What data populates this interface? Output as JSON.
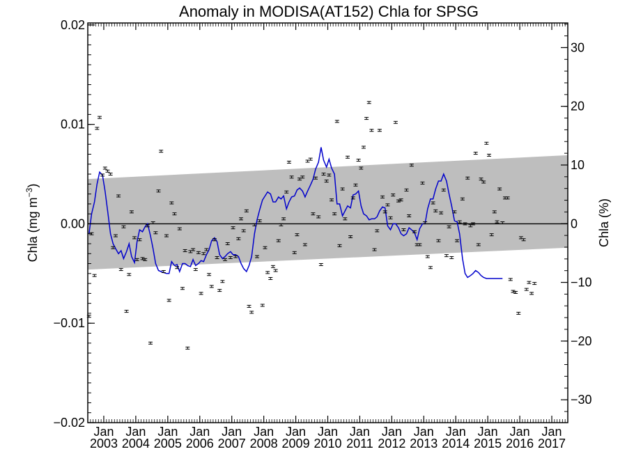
{
  "chart_data": {
    "type": "scatter",
    "title": "Anomaly in MODISA(AT152) Chla for SPSG",
    "ylabel_left": "Chla (mg m",
    "ylabel_left_sup": "−3",
    "ylabel_left_close": ")",
    "ylabel_right": "Chla (%)",
    "xlim": [
      2002.5,
      2017.5
    ],
    "ylim_left": [
      -0.02,
      0.0202
    ],
    "ylim_right": [
      -33.9,
      34.2
    ],
    "left_ticks": [
      {
        "value": -0.02,
        "label": "−0.02"
      },
      {
        "value": -0.01,
        "label": "−0.01"
      },
      {
        "value": 0.0,
        "label": "0.00"
      },
      {
        "value": 0.01,
        "label": "0.01"
      },
      {
        "value": 0.02,
        "label": "0.02"
      }
    ],
    "right_ticks": [
      {
        "value": -30,
        "label": "−30"
      },
      {
        "value": -20,
        "label": "−20"
      },
      {
        "value": -10,
        "label": "−10"
      },
      {
        "value": 0,
        "label": "0"
      },
      {
        "value": 10,
        "label": "10"
      },
      {
        "value": 20,
        "label": "20"
      },
      {
        "value": 30,
        "label": "30"
      }
    ],
    "x_ticks": [
      {
        "value": 2003,
        "month": "Jan",
        "year": "2003"
      },
      {
        "value": 2004,
        "month": "Jan",
        "year": "2004"
      },
      {
        "value": 2005,
        "month": "Jan",
        "year": "2005"
      },
      {
        "value": 2006,
        "month": "Jan",
        "year": "2006"
      },
      {
        "value": 2007,
        "month": "Jan",
        "year": "2007"
      },
      {
        "value": 2008,
        "month": "Jan",
        "year": "2008"
      },
      {
        "value": 2009,
        "month": "Jan",
        "year": "2009"
      },
      {
        "value": 2010,
        "month": "Jan",
        "year": "2010"
      },
      {
        "value": 2011,
        "month": "Jan",
        "year": "2011"
      },
      {
        "value": 2012,
        "month": "Jan",
        "year": "2012"
      },
      {
        "value": 2013,
        "month": "Jan",
        "year": "2013"
      },
      {
        "value": 2014,
        "month": "Jan",
        "year": "2014"
      },
      {
        "value": 2015,
        "month": "Jan",
        "year": "2015"
      },
      {
        "value": 2016,
        "month": "Jan",
        "year": "2016"
      },
      {
        "value": 2017,
        "month": "Jan",
        "year": "2017"
      }
    ],
    "trend_band": {
      "start": 2002.5,
      "end": 2017.5,
      "upper_start": 0.0045,
      "upper_end": 0.0069,
      "lower_start": -0.0046,
      "lower_end": -0.0024
    },
    "zero_line": 0.0,
    "monthly_anomalies": [
      [
        2002.54,
        -0.0093
      ],
      [
        2002.62,
        -0.001
      ],
      [
        2002.71,
        -0.0052
      ],
      [
        2002.79,
        0.0096
      ],
      [
        2002.87,
        0.0107
      ],
      [
        2002.96,
        0.0049
      ],
      [
        2003.04,
        0.0056
      ],
      [
        2003.12,
        0.0053
      ],
      [
        2003.21,
        0.005
      ],
      [
        2003.29,
        -0.0024
      ],
      [
        2003.37,
        -0.0012
      ],
      [
        2003.46,
        0.0028
      ],
      [
        2003.54,
        -0.0046
      ],
      [
        2003.62,
        -0.0003
      ],
      [
        2003.71,
        -0.0088
      ],
      [
        2003.79,
        -0.0051
      ],
      [
        2003.87,
        0.0012
      ],
      [
        2003.96,
        -0.0014
      ],
      [
        2004.04,
        -0.0036
      ],
      [
        2004.12,
        -0.0016
      ],
      [
        2004.21,
        -0.0035
      ],
      [
        2004.29,
        -0.0036
      ],
      [
        2004.37,
        -0.0002
      ],
      [
        2004.46,
        -0.012
      ],
      [
        2004.54,
        0.0001
      ],
      [
        2004.62,
        -0.0009
      ],
      [
        2004.71,
        0.0033
      ],
      [
        2004.79,
        0.0073
      ],
      [
        2004.87,
        -0.0048
      ],
      [
        2004.96,
        -0.0012
      ],
      [
        2005.04,
        -0.0077
      ],
      [
        2005.12,
        0.0021
      ],
      [
        2005.21,
        0.001
      ],
      [
        2005.29,
        -0.0044
      ],
      [
        2005.37,
        -0.0005
      ],
      [
        2005.46,
        -0.0065
      ],
      [
        2005.54,
        -0.0027
      ],
      [
        2005.62,
        -0.0125
      ],
      [
        2005.71,
        -0.0028
      ],
      [
        2005.79,
        -0.0026
      ],
      [
        2005.87,
        -0.0046
      ],
      [
        2005.96,
        -0.0029
      ],
      [
        2006.04,
        -0.007
      ],
      [
        2006.12,
        -0.003
      ],
      [
        2006.21,
        -0.0026
      ],
      [
        2006.29,
        -0.0051
      ],
      [
        2006.37,
        -0.0063
      ],
      [
        2006.46,
        -0.0016
      ],
      [
        2006.54,
        -0.0034
      ],
      [
        2006.62,
        -0.0067
      ],
      [
        2006.71,
        -0.0058
      ],
      [
        2006.79,
        -0.0036
      ],
      [
        2006.87,
        -0.002
      ],
      [
        2006.96,
        -0.0034
      ],
      [
        2007.04,
        -0.0004
      ],
      [
        2007.12,
        -0.0033
      ],
      [
        2007.21,
        -0.0015
      ],
      [
        2007.29,
        0.0005
      ],
      [
        2007.37,
        -0.0007
      ],
      [
        2007.46,
        0.0013
      ],
      [
        2007.54,
        -0.0083
      ],
      [
        2007.62,
        -0.0089
      ],
      [
        2007.71,
        -0.0001
      ],
      [
        2007.79,
        -0.0033
      ],
      [
        2007.87,
        0.0003
      ],
      [
        2007.96,
        -0.0082
      ],
      [
        2008.04,
        -0.0024
      ],
      [
        2008.12,
        -0.0049
      ],
      [
        2008.21,
        -0.0055
      ],
      [
        2008.29,
        -0.0043
      ],
      [
        2008.37,
        -0.0047
      ],
      [
        2008.46,
        -0.0017
      ],
      [
        2008.54,
        -0.0001
      ],
      [
        2008.62,
        0.0005
      ],
      [
        2008.71,
        0.0032
      ],
      [
        2008.79,
        0.0062
      ],
      [
        2008.87,
        0.0047
      ],
      [
        2008.96,
        -0.0029
      ],
      [
        2009.04,
        -0.0011
      ],
      [
        2009.12,
        0.0045
      ],
      [
        2009.21,
        0.0047
      ],
      [
        2009.29,
        -0.0021
      ],
      [
        2009.37,
        0.0063
      ],
      [
        2009.46,
        0.0065
      ],
      [
        2009.54,
        0.001
      ],
      [
        2009.62,
        0.0046
      ],
      [
        2009.71,
        0.0007
      ],
      [
        2009.79,
        -0.0041
      ],
      [
        2009.87,
        0.005
      ],
      [
        2009.96,
        0.0043
      ],
      [
        2010.04,
        0.0049
      ],
      [
        2010.12,
        0.0024
      ],
      [
        2010.21,
        0.001
      ],
      [
        2010.29,
        0.0103
      ],
      [
        2010.37,
        -0.0022
      ],
      [
        2010.46,
        0.0035
      ],
      [
        2010.54,
        0.0005
      ],
      [
        2010.62,
        0.0067
      ],
      [
        2010.71,
        -0.0013
      ],
      [
        2010.79,
        0.0026
      ],
      [
        2010.87,
        0.0039
      ],
      [
        2010.96,
        0.0064
      ],
      [
        2011.04,
        0.0056
      ],
      [
        2011.12,
        0.0077
      ],
      [
        2011.21,
        0.0106
      ],
      [
        2011.29,
        0.0122
      ],
      [
        2011.37,
        0.0094
      ],
      [
        2011.46,
        -0.0026
      ],
      [
        2011.54,
        -0.0007
      ],
      [
        2011.62,
        0.0094
      ],
      [
        2011.71,
        0.0027
      ],
      [
        2011.79,
        0.0012
      ],
      [
        2011.87,
        0.0019
      ],
      [
        2011.96,
        0.0006
      ],
      [
        2012.04,
        0.0029
      ],
      [
        2012.12,
        0.0102
      ],
      [
        2012.21,
        0.0023
      ],
      [
        2012.29,
        0.0024
      ],
      [
        2012.37,
        -0.0006
      ],
      [
        2012.46,
        0.0034
      ],
      [
        2012.54,
        0.0008
      ],
      [
        2012.62,
        0.0059
      ],
      [
        2012.71,
        -0.0008
      ],
      [
        2012.79,
        -0.0021
      ],
      [
        2012.87,
        -0.0021
      ],
      [
        2012.96,
        0.0041
      ],
      [
        2013.04,
        0.0001
      ],
      [
        2013.12,
        -0.0033
      ],
      [
        2013.21,
        -0.0044
      ],
      [
        2013.29,
        0.0021
      ],
      [
        2013.37,
        0.0013
      ],
      [
        2013.46,
        -0.0017
      ],
      [
        2013.54,
        0.0011
      ],
      [
        2013.62,
        0.0034
      ],
      [
        2013.71,
        -0.0032
      ],
      [
        2013.79,
        -0.0003
      ],
      [
        2013.87,
        -0.0034
      ],
      [
        2013.96,
        0.0012
      ],
      [
        2014.04,
        -0.0017
      ],
      [
        2014.12,
        0.0002
      ],
      [
        2014.21,
        0.0025
      ],
      [
        2014.29,
        0.0
      ],
      [
        2014.37,
        0.0046
      ],
      [
        2014.46,
        -0.0002
      ],
      [
        2014.54,
        0.0
      ],
      [
        2014.62,
        0.0071
      ],
      [
        2014.71,
        -0.0021
      ],
      [
        2014.79,
        0.0045
      ],
      [
        2014.87,
        0.0042
      ],
      [
        2014.96,
        0.0081
      ],
      [
        2015.04,
        0.0069
      ],
      [
        2015.12,
        -0.0011
      ],
      [
        2015.21,
        0.0012
      ],
      [
        2015.29,
        0.0002
      ],
      [
        2015.37,
        0.0035
      ],
      [
        2015.46,
        0.0001
      ],
      [
        2015.54,
        0.0026
      ],
      [
        2015.62,
        0.0026
      ],
      [
        2015.71,
        -0.0056
      ],
      [
        2015.79,
        -0.0068
      ],
      [
        2015.87,
        -0.0069
      ],
      [
        2015.96,
        -0.009
      ],
      [
        2016.04,
        -0.0014
      ],
      [
        2016.12,
        -0.0016
      ],
      [
        2016.21,
        -0.0066
      ],
      [
        2016.29,
        -0.0059
      ],
      [
        2016.37,
        -0.007
      ],
      [
        2016.46,
        -0.006
      ]
    ],
    "smoothed_line": [
      [
        2002.54,
        -0.001
      ],
      [
        2002.62,
        0.001
      ],
      [
        2002.71,
        0.0022
      ],
      [
        2002.79,
        0.004
      ],
      [
        2002.87,
        0.0052
      ],
      [
        2002.96,
        0.0049
      ],
      [
        2003.04,
        0.0033
      ],
      [
        2003.12,
        0.0013
      ],
      [
        2003.21,
        -0.001
      ],
      [
        2003.29,
        -0.002
      ],
      [
        2003.37,
        -0.0025
      ],
      [
        2003.46,
        -0.003
      ],
      [
        2003.54,
        -0.0027
      ],
      [
        2003.62,
        -0.0035
      ],
      [
        2003.71,
        -0.0028
      ],
      [
        2003.79,
        -0.002
      ],
      [
        2003.87,
        -0.0033
      ],
      [
        2003.96,
        -0.0039
      ],
      [
        2004.04,
        -0.0018
      ],
      [
        2004.12,
        -0.0006
      ],
      [
        2004.21,
        -0.0008
      ],
      [
        2004.29,
        -0.0003
      ],
      [
        2004.37,
        0.0
      ],
      [
        2004.46,
        -0.0012
      ],
      [
        2004.54,
        -0.0025
      ],
      [
        2004.62,
        -0.004
      ],
      [
        2004.71,
        -0.0047
      ],
      [
        2004.79,
        -0.0048
      ],
      [
        2004.87,
        -0.0049
      ],
      [
        2004.96,
        -0.005
      ],
      [
        2005.04,
        -0.005
      ],
      [
        2005.12,
        -0.0038
      ],
      [
        2005.21,
        -0.0042
      ],
      [
        2005.29,
        -0.0041
      ],
      [
        2005.37,
        -0.0048
      ],
      [
        2005.46,
        -0.004
      ],
      [
        2005.54,
        -0.004
      ],
      [
        2005.62,
        -0.0042
      ],
      [
        2005.71,
        -0.0043
      ],
      [
        2005.79,
        -0.0036
      ],
      [
        2005.87,
        -0.0042
      ],
      [
        2005.96,
        -0.004
      ],
      [
        2006.04,
        -0.0037
      ],
      [
        2006.12,
        -0.0038
      ],
      [
        2006.21,
        -0.0031
      ],
      [
        2006.29,
        -0.0026
      ],
      [
        2006.37,
        -0.0017
      ],
      [
        2006.46,
        -0.0014
      ],
      [
        2006.54,
        -0.0018
      ],
      [
        2006.62,
        -0.0031
      ],
      [
        2006.71,
        -0.0035
      ],
      [
        2006.79,
        -0.0033
      ],
      [
        2006.87,
        -0.003
      ],
      [
        2006.96,
        -0.0028
      ],
      [
        2007.04,
        -0.0031
      ],
      [
        2007.12,
        -0.0031
      ],
      [
        2007.21,
        -0.0033
      ],
      [
        2007.29,
        -0.004
      ],
      [
        2007.37,
        -0.0045
      ],
      [
        2007.46,
        -0.0048
      ],
      [
        2007.54,
        -0.0042
      ],
      [
        2007.62,
        -0.0033
      ],
      [
        2007.71,
        -0.001
      ],
      [
        2007.79,
        0.0004
      ],
      [
        2007.87,
        0.0014
      ],
      [
        2007.96,
        0.0024
      ],
      [
        2008.04,
        0.0028
      ],
      [
        2008.12,
        0.0032
      ],
      [
        2008.21,
        0.003
      ],
      [
        2008.29,
        0.0022
      ],
      [
        2008.37,
        0.0022
      ],
      [
        2008.46,
        0.0027
      ],
      [
        2008.54,
        0.0025
      ],
      [
        2008.62,
        0.0028
      ],
      [
        2008.71,
        0.0015
      ],
      [
        2008.79,
        0.0022
      ],
      [
        2008.87,
        0.0027
      ],
      [
        2008.96,
        0.0028
      ],
      [
        2009.04,
        0.0034
      ],
      [
        2009.12,
        0.0036
      ],
      [
        2009.21,
        0.0033
      ],
      [
        2009.29,
        0.0027
      ],
      [
        2009.37,
        0.0033
      ],
      [
        2009.46,
        0.0039
      ],
      [
        2009.54,
        0.0045
      ],
      [
        2009.62,
        0.0055
      ],
      [
        2009.71,
        0.0062
      ],
      [
        2009.79,
        0.0077
      ],
      [
        2009.87,
        0.0064
      ],
      [
        2009.96,
        0.0057
      ],
      [
        2010.04,
        0.0065
      ],
      [
        2010.12,
        0.0056
      ],
      [
        2010.21,
        0.005
      ],
      [
        2010.29,
        0.002
      ],
      [
        2010.37,
        0.002
      ],
      [
        2010.46,
        0.0008
      ],
      [
        2010.54,
        0.0013
      ],
      [
        2010.62,
        0.0018
      ],
      [
        2010.71,
        0.0016
      ],
      [
        2010.79,
        0.0029
      ],
      [
        2010.87,
        0.003
      ],
      [
        2010.96,
        0.0033
      ],
      [
        2011.04,
        0.0018
      ],
      [
        2011.12,
        0.001
      ],
      [
        2011.21,
        0.0008
      ],
      [
        2011.29,
        0.0004
      ],
      [
        2011.37,
        0.0005
      ],
      [
        2011.46,
        0.0005
      ],
      [
        2011.54,
        0.0007
      ],
      [
        2011.62,
        0.0013
      ],
      [
        2011.71,
        0.0017
      ],
      [
        2011.79,
        0.0016
      ],
      [
        2011.87,
        -0.0002
      ],
      [
        2011.96,
        -0.0006
      ],
      [
        2012.04,
        0.0
      ],
      [
        2012.12,
        0.0
      ],
      [
        2012.21,
        -0.0004
      ],
      [
        2012.29,
        -0.001
      ],
      [
        2012.37,
        -0.0012
      ],
      [
        2012.46,
        -0.001
      ],
      [
        2012.54,
        -0.0004
      ],
      [
        2012.62,
        -0.0006
      ],
      [
        2012.71,
        -0.0009
      ],
      [
        2012.79,
        -0.0016
      ],
      [
        2012.87,
        -0.0005
      ],
      [
        2012.96,
        0.0
      ],
      [
        2013.04,
        0.0
      ],
      [
        2013.12,
        0.0015
      ],
      [
        2013.21,
        0.0025
      ],
      [
        2013.29,
        0.0025
      ],
      [
        2013.37,
        0.0035
      ],
      [
        2013.46,
        0.0043
      ],
      [
        2013.54,
        0.0043
      ],
      [
        2013.62,
        0.005
      ],
      [
        2013.71,
        0.0043
      ],
      [
        2013.79,
        0.003
      ],
      [
        2013.87,
        0.0018
      ],
      [
        2013.96,
        0.0003
      ],
      [
        2014.04,
        0.0002
      ],
      [
        2014.12,
        -0.001
      ],
      [
        2014.21,
        -0.0035
      ],
      [
        2014.29,
        -0.005
      ],
      [
        2014.37,
        -0.0054
      ],
      [
        2014.46,
        -0.0052
      ],
      [
        2014.54,
        -0.005
      ],
      [
        2014.62,
        -0.0047
      ],
      [
        2014.71,
        -0.0049
      ],
      [
        2014.79,
        -0.0052
      ],
      [
        2014.87,
        -0.0054
      ],
      [
        2014.96,
        -0.0055
      ],
      [
        2015.04,
        -0.0055
      ],
      [
        2015.12,
        -0.0055
      ],
      [
        2015.21,
        -0.0055
      ],
      [
        2015.29,
        -0.0055
      ],
      [
        2015.37,
        -0.0055
      ],
      [
        2015.46,
        -0.0055
      ]
    ]
  }
}
